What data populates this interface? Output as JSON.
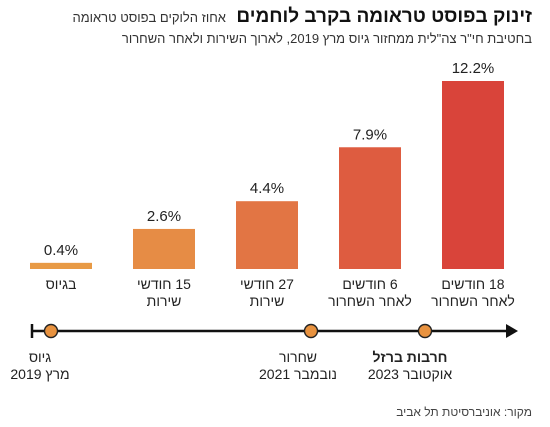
{
  "header": {
    "title": "זינוק בפוסט טראומה בקרב לוחמים",
    "subtitle_line1": "אחוז הלוקים בפוסט טראומה",
    "subtitle_line2": "בחטיבת חי\"ר צה\"לית ממחזור גיוס מרץ 2019, לארוך השירות ולאחר השחרור"
  },
  "chart_data": {
    "type": "bar",
    "categories": [
      [
        "בגיוס"
      ],
      [
        "15 חודשי",
        "שירות"
      ],
      [
        "27 חודשי",
        "שירות"
      ],
      [
        "6 חודשים",
        "לאחר השחרור"
      ],
      [
        "18 חודשים",
        "לאחר השחרור"
      ]
    ],
    "values": [
      0.4,
      2.6,
      4.4,
      7.9,
      12.2
    ],
    "value_labels": [
      "0.4%",
      "2.6%",
      "4.4%",
      "7.9%",
      "12.2%"
    ],
    "bar_colors": [
      "#e89a45",
      "#e68c45",
      "#e27544",
      "#de5c40",
      "#d9443a"
    ],
    "ylim": [
      0,
      12.2
    ]
  },
  "timeline": {
    "events": [
      {
        "lines": [
          "גיוס",
          "מרץ 2019"
        ],
        "bold_first": false
      },
      {
        "lines": [
          "שחרור",
          "נובמבר 2021"
        ],
        "bold_first": false
      },
      {
        "lines": [
          "חרבות ברזל",
          "אוקטובר 2023"
        ],
        "bold_first": true
      }
    ],
    "marker_color": "#e8923f"
  },
  "footer": {
    "source": "מקור: אוניברסיטת תל אביב"
  }
}
